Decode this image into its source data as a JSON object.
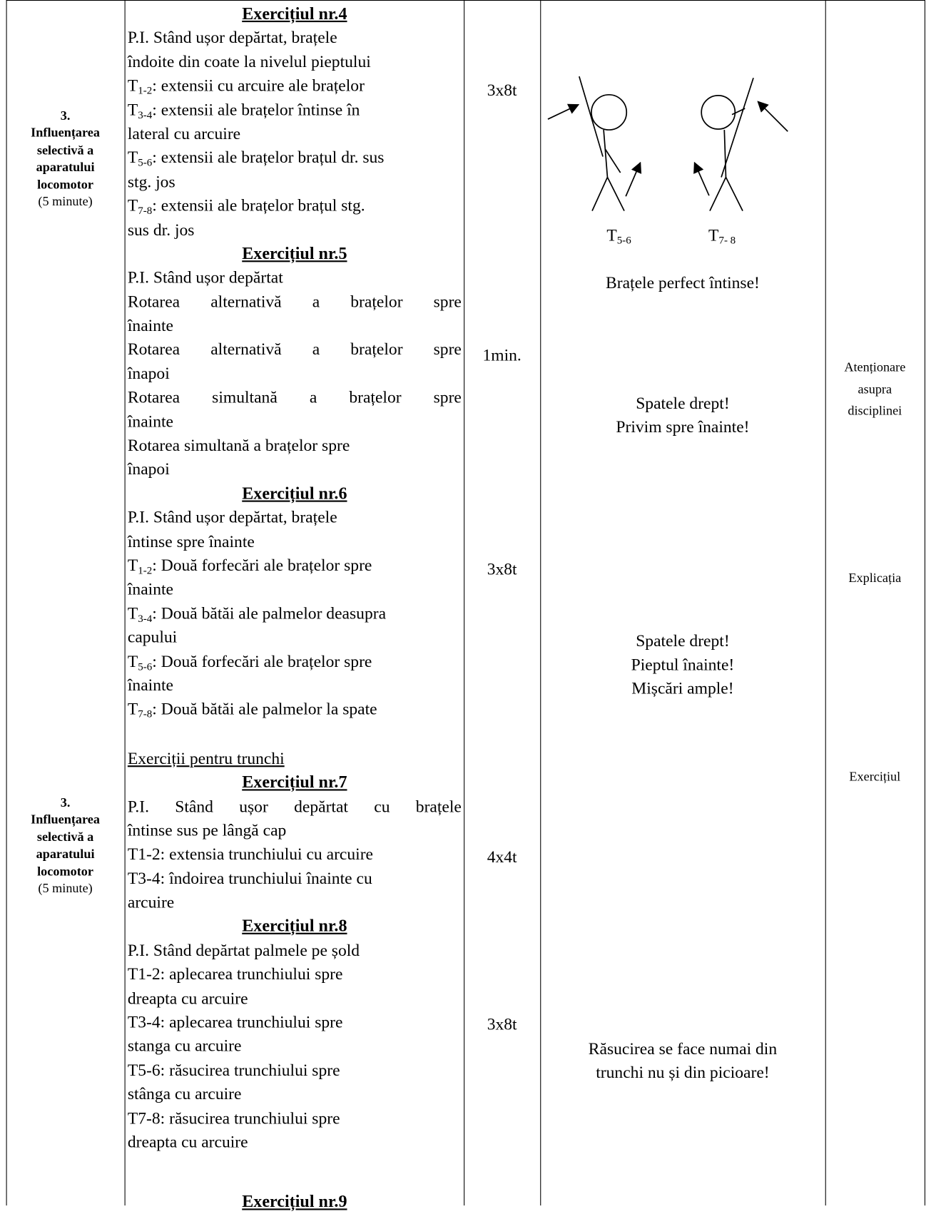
{
  "section_labels": [
    {
      "number": "3.",
      "lines": [
        "Influențarea",
        "selectivă a",
        "aparatului",
        "locomotor"
      ],
      "duration": "(5 minute)"
    },
    {
      "number": "3.",
      "lines": [
        "Influențarea",
        "selectivă a",
        "aparatului",
        "locomotor"
      ],
      "duration": "(5 minute)"
    }
  ],
  "exercises": [
    {
      "heading": "Exercițiul nr.4",
      "dosage": "3x8t",
      "lines": [
        "P.I. Stând ușor depărtat, brațele",
        "îndoite din coate la nivelul pieptului",
        {
          "t": "T",
          "sub": "1-2",
          "text": ": extensii cu arcuire ale brațelor"
        },
        {
          "t": "T",
          "sub": "3-4",
          "text": ": extensii ale brațelor întinse în"
        },
        "lateral cu arcuire",
        {
          "t": "T",
          "sub": "5-6",
          "text": ": extensii ale brațelor brațul dr. sus"
        },
        "stg. jos",
        {
          "t": "T",
          "sub": "7-8",
          "text": ": extensii ale brațelor brațul stg."
        },
        "sus dr. jos"
      ]
    },
    {
      "heading": "Exercițiul nr.5",
      "dosage": "1min.",
      "lines": [
        "P.I. Stând ușor depărtat",
        "Rotarea alternativă a brațelor spre",
        "înainte",
        "Rotarea alternativă a brațelor spre",
        "înapoi",
        "Rotarea simultană a brațelor spre",
        "înainte",
        "Rotarea simultană a brațelor spre",
        "înapoi"
      ]
    },
    {
      "heading": "Exercițiul nr.6",
      "dosage": "3x8t",
      "lines": [
        "P.I. Stând ușor depărtat, brațele",
        "întinse spre înainte",
        {
          "t": "T",
          "sub": "1-2",
          "text": ": Două forfecări ale brațelor spre"
        },
        "înainte",
        {
          "t": "T",
          "sub": "3-4",
          "text": ": Două bătăi ale palmelor deasupra"
        },
        "capului",
        {
          "t": "T",
          "sub": "5-6",
          "text": ": Două forfecări ale brațelor spre"
        },
        "înainte",
        {
          "t": "T",
          "sub": "7-8",
          "text": ": Două bătăi ale palmelor la spate"
        }
      ]
    },
    {
      "heading": "Exercițiul nr.7",
      "dosage": "4x4t",
      "lines": [
        "P.I. Stând ușor depărtat cu brațele",
        "întinse sus pe lângă cap",
        "T1-2: extensia trunchiului cu arcuire",
        "T3-4: îndoirea trunchiului înainte cu",
        "arcuire"
      ]
    },
    {
      "heading": "Exercițiul nr.8",
      "dosage": "3x8t",
      "lines": [
        "P.I. Stând depărtat palmele pe șold",
        "T1-2: aplecarea trunchiului spre",
        "dreapta cu arcuire",
        "T3-4: aplecarea trunchiului spre",
        "stanga cu arcuire",
        "T5-6: răsucirea trunchiului spre",
        "stânga cu arcuire",
        "T7-8: răsucirea trunchiului spre",
        "dreapta cu arcuire"
      ]
    },
    {
      "heading": "Exercițiul nr.9",
      "lines": []
    }
  ],
  "group_title": "Exerciții pentru trunchi",
  "figure_labels": [
    {
      "t": "T",
      "sub": "5-6"
    },
    {
      "t": "T",
      "sub": "7- 8"
    }
  ],
  "remarks": [
    [
      "Brațele perfect întinse!"
    ],
    [
      "Spatele drept!",
      "Privim spre înainte!"
    ],
    [
      "Spatele drept!",
      "Pieptul înainte!",
      "Mișcări ample!"
    ],
    [
      "Răsucirea se face numai din",
      "trunchi nu și din picioare!"
    ]
  ],
  "methods": [
    [
      "Atenționare",
      "asupra",
      "disciplinei"
    ],
    [
      "Explicația"
    ],
    [
      "Exercițiul"
    ]
  ]
}
